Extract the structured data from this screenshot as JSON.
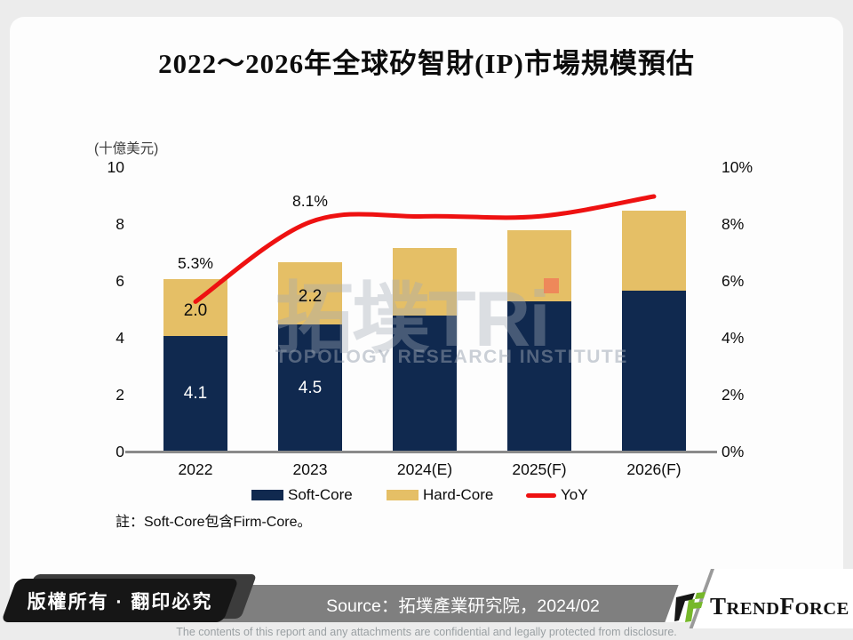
{
  "page": {
    "title": "2022～2026年全球矽智財(IP)市場規模預估",
    "unit_label": "(十億美元)",
    "note": "註：Soft-Core包含Firm-Core。"
  },
  "watermark": {
    "brand": "拓墣TRi",
    "subtitle": "TOPOLOGY RESEARCH INSTITUTE"
  },
  "chart_data": {
    "type": "bar",
    "subtype": "stacked-bars-with-yoy-line",
    "categories": [
      "2022",
      "2023",
      "2024(E)",
      "2025(F)",
      "2026(F)"
    ],
    "series": [
      {
        "name": "Soft-Core",
        "chart": "bar",
        "stack": "total",
        "color": "#10294f",
        "values": [
          4.1,
          4.5,
          4.8,
          5.3,
          5.7
        ],
        "data_labels": [
          "4.1",
          "4.5",
          "",
          "",
          ""
        ]
      },
      {
        "name": "Hard-Core",
        "chart": "bar",
        "stack": "total",
        "color": "#e5bf66",
        "values": [
          2.0,
          2.2,
          2.4,
          2.5,
          2.8
        ],
        "data_labels": [
          "2.0",
          "2.2",
          "",
          "",
          ""
        ]
      },
      {
        "name": "YoY",
        "chart": "line",
        "axis": "right",
        "color": "#ee1111",
        "values": [
          5.3,
          8.1,
          8.3,
          8.3,
          9.0
        ],
        "data_labels": [
          "5.3%",
          "8.1%",
          "",
          "",
          ""
        ],
        "label_dy": [
          -43,
          -24,
          0,
          0,
          0
        ]
      }
    ],
    "left_axis": {
      "min": 0,
      "max": 10,
      "ticks": [
        0,
        2,
        4,
        6,
        8,
        10
      ],
      "label": "(十億美元)"
    },
    "right_axis": {
      "min": 0,
      "max": 10,
      "ticks": [
        "0%",
        "2%",
        "4%",
        "6%",
        "8%",
        "10%"
      ]
    },
    "grid": false,
    "legend_position": "bottom"
  },
  "legend": [
    {
      "label": "Soft-Core",
      "swatch": "rect",
      "color": "#10294f"
    },
    {
      "label": "Hard-Core",
      "swatch": "rect",
      "color": "#e5bf66"
    },
    {
      "label": "YoY",
      "swatch": "line",
      "color": "#ee1111"
    }
  ],
  "footer": {
    "copyright": "版權所有 · 翻印必究",
    "source": "Source：拓墣產業研究院，2024/02",
    "disclaimer": "The contents of this report and any attachments are confidential and legally protected from disclosure.",
    "logo": {
      "t1": "T",
      "t2": "REND",
      "t3": "F",
      "t4": "ORCE"
    }
  }
}
